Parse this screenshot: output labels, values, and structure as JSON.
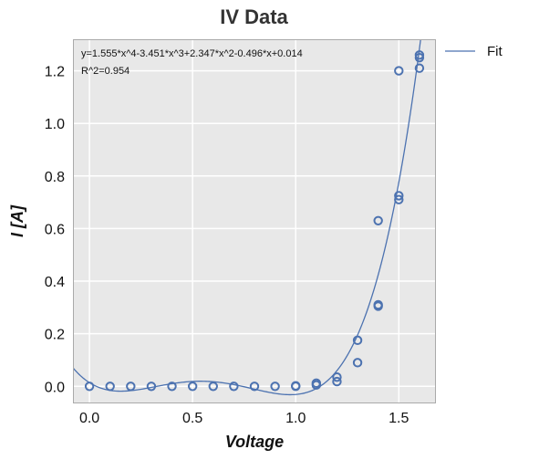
{
  "chart_data": {
    "type": "scatter",
    "title": "IV Data",
    "xlabel": "Voltage",
    "ylabel": "I [A]",
    "xlim": [
      -0.08,
      1.68
    ],
    "ylim": [
      -0.065,
      1.32
    ],
    "xticks": [
      0.0,
      0.5,
      1.0,
      1.5
    ],
    "yticks": [
      0.0,
      0.2,
      0.4,
      0.6,
      0.8,
      1.0,
      1.2
    ],
    "xtick_labels": [
      "0.0",
      "0.5",
      "1.0",
      "1.5"
    ],
    "ytick_labels": [
      "0.0",
      "0.2",
      "0.4",
      "0.6",
      "0.8",
      "1.0",
      "1.2"
    ],
    "grid": true,
    "legend_position": "outside-top-right",
    "annotations": [
      "y=1.555*x^4-3.451*x^3+2.347*x^2-0.496*x+0.014",
      "R^2=0.954"
    ],
    "points": {
      "x": [
        0.0,
        0.1,
        0.2,
        0.3,
        0.4,
        0.5,
        0.6,
        0.7,
        0.8,
        0.9,
        1.0,
        1.0,
        1.1,
        1.1,
        1.2,
        1.2,
        1.3,
        1.3,
        1.4,
        1.4,
        1.4,
        1.5,
        1.5,
        1.5,
        1.6,
        1.6,
        1.6
      ],
      "y": [
        0.0,
        0.0,
        0.0,
        0.0,
        0.0,
        0.0,
        0.0,
        0.0,
        0.0,
        0.0,
        0.0,
        0.002,
        0.005,
        0.012,
        0.018,
        0.035,
        0.09,
        0.175,
        0.305,
        0.31,
        0.63,
        0.71,
        0.725,
        1.2,
        1.21,
        1.25,
        1.26
      ]
    },
    "series": [
      {
        "name": "Fit",
        "type": "line",
        "coefficients": [
          1.555,
          -3.451,
          2.347,
          -0.496,
          0.014
        ]
      }
    ],
    "colors": {
      "series": "#4c72b0",
      "plot_bg": "#e8e8e8",
      "grid": "#ffffff",
      "frame": "#aaaaaa"
    }
  }
}
